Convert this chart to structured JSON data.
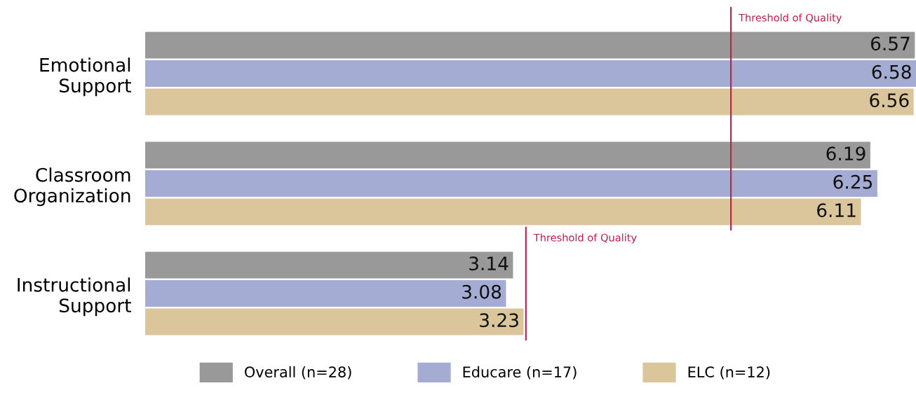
{
  "chart_data": {
    "type": "bar",
    "orientation": "horizontal",
    "categories": [
      "Emotional\nSupport",
      "Classroom\nOrganization",
      "Instructional\nSupport"
    ],
    "series": [
      {
        "name": "Overall (n=28)",
        "color": "#999999",
        "values": [
          6.57,
          6.19,
          3.14
        ]
      },
      {
        "name": "Educare (n=17)",
        "color": "#a5acd3",
        "values": [
          6.58,
          6.25,
          3.08
        ]
      },
      {
        "name": "ELC (n=12)",
        "color": "#dbc69b",
        "values": [
          6.56,
          6.11,
          3.23
        ]
      }
    ],
    "data_labels": true,
    "ref_lines": [
      {
        "axis": "x",
        "value": 5,
        "label": "Threshold of Quality",
        "color": "#c8194b"
      },
      {
        "axis": "x",
        "value": 3.25,
        "label": "Threshold of Quality",
        "color": "#c8194b"
      }
    ],
    "tick_labels": "y",
    "legend": "bottom",
    "grid": false
  }
}
